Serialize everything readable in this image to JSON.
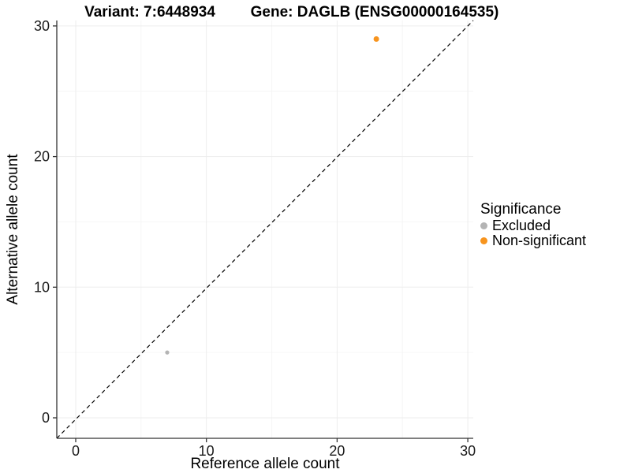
{
  "chart_data": {
    "type": "scatter",
    "title_left": "Variant: 7:6448934",
    "title_right": "Gene: DAGLB (ENSG00000164535)",
    "xlabel": "Reference allele count",
    "ylabel": "Alternative allele count",
    "x_ticks": [
      0,
      10,
      20,
      30
    ],
    "y_ticks": [
      0,
      10,
      20,
      30
    ],
    "x_minor_ticks": [
      5,
      15,
      25
    ],
    "y_minor_ticks": [
      5,
      15,
      25
    ],
    "xlim": [
      -1.45,
      30.4
    ],
    "ylim": [
      -1.55,
      30.4
    ],
    "grid": true,
    "legend_position": "right",
    "identity_line": {
      "style": "dashed",
      "equation": "y = x",
      "color": "#000000"
    },
    "series": [
      {
        "name": "Excluded",
        "color": "#B4B4B4",
        "point_radius": 2.6,
        "points": [
          {
            "x": 7,
            "y": 5
          }
        ]
      },
      {
        "name": "Non-significant",
        "color": "#F7941E",
        "point_radius": 3.5,
        "points": [
          {
            "x": 23,
            "y": 29
          }
        ]
      }
    ]
  },
  "legend": {
    "title": "Significance",
    "items": [
      {
        "label": "Excluded",
        "color": "#B4B4B4"
      },
      {
        "label": "Non-significant",
        "color": "#F7941E"
      }
    ]
  },
  "colors": {
    "background": "#FFFFFF",
    "grid_major": "#EDEDED",
    "grid_minor": "#F6F6F6",
    "axis_line": "#333333",
    "tick_text": "#1A1A1A"
  }
}
